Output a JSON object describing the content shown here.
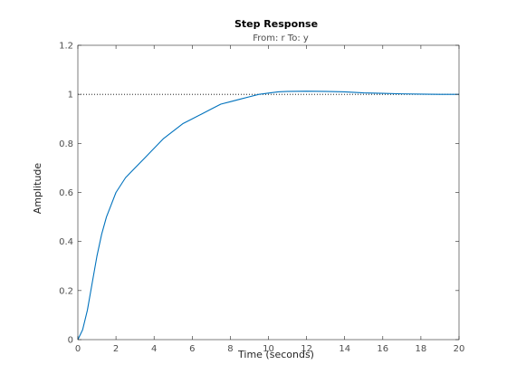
{
  "chart_data": {
    "type": "line",
    "title": "Step Response",
    "subtitle": "From: r  To: y",
    "xlabel": "Time (seconds)",
    "ylabel": "Amplitude",
    "xlim": [
      0,
      20
    ],
    "ylim": [
      0,
      1.2
    ],
    "xticks": [
      0,
      2,
      4,
      6,
      8,
      10,
      12,
      14,
      16,
      18,
      20
    ],
    "yticks": [
      0,
      0.2,
      0.4,
      0.6,
      0.8,
      1,
      1.2
    ],
    "xtick_labels": [
      "0",
      "2",
      "4",
      "6",
      "8",
      "10",
      "12",
      "14",
      "16",
      "18",
      "20"
    ],
    "ytick_labels": [
      "0",
      "0.2",
      "0.4",
      "0.6",
      "0.8",
      "1",
      "1.2"
    ],
    "grid": false,
    "reference_line": {
      "y": 1.0,
      "style": "dotted",
      "color": "#000000"
    },
    "series": [
      {
        "color": "#0072bd",
        "x": [
          0,
          0.25,
          0.5,
          0.75,
          1.0,
          1.25,
          1.5,
          1.75,
          2.0,
          2.5,
          3.0,
          3.5,
          4.0,
          4.5,
          5.0,
          5.5,
          6.0,
          6.5,
          7.0,
          7.5,
          8.0,
          8.5,
          9.0,
          9.5,
          10.0,
          10.5,
          11.0,
          12.0,
          13.0,
          14.0,
          15.0,
          16.0,
          17.0,
          18.0,
          19.0,
          20.0
        ],
        "y": [
          0,
          0.04,
          0.12,
          0.23,
          0.34,
          0.43,
          0.5,
          0.55,
          0.6,
          0.66,
          0.7,
          0.74,
          0.78,
          0.82,
          0.85,
          0.88,
          0.9,
          0.92,
          0.94,
          0.96,
          0.97,
          0.98,
          0.99,
          1.0,
          1.005,
          1.01,
          1.012,
          1.013,
          1.012,
          1.01,
          1.006,
          1.004,
          1.002,
          1.001,
          1.0,
          1.0
        ]
      }
    ]
  }
}
